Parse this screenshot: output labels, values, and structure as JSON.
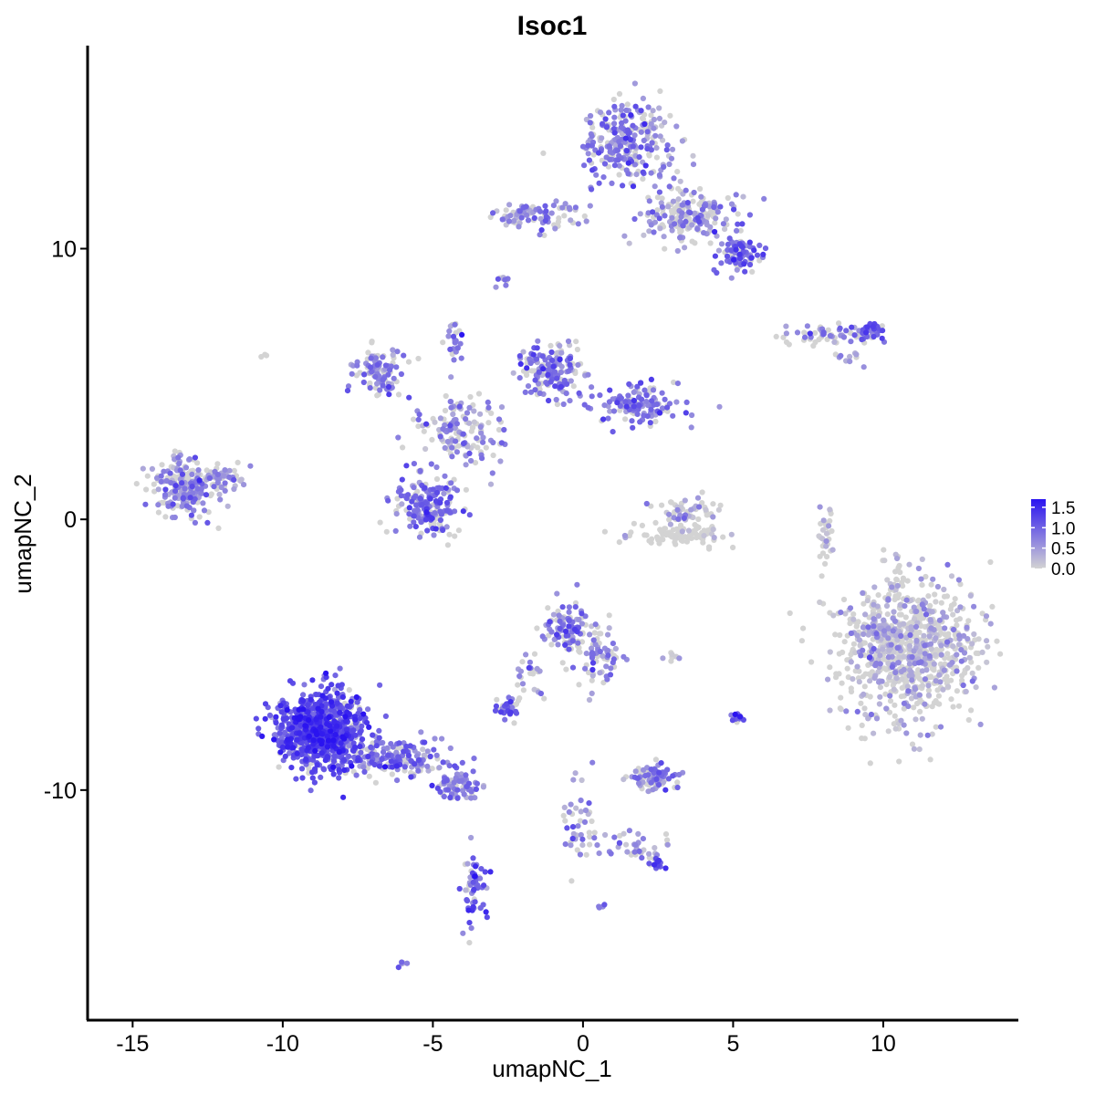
{
  "chart_data": {
    "type": "scatter",
    "title": "Isoc1",
    "xlabel": "umapNC_1",
    "ylabel": "umapNC_2",
    "xlim": [
      -16.5,
      14.5
    ],
    "ylim": [
      -18.5,
      17.5
    ],
    "xticks": [
      -15,
      -10,
      -5,
      0,
      5,
      10
    ],
    "yticks": [
      -10,
      0,
      10
    ],
    "grid": false,
    "legend": {
      "position": "right",
      "type": "colorbar",
      "labels": [
        "1.5",
        "1.0",
        "0.5",
        "0.0"
      ],
      "values": [
        1.5,
        1.0,
        0.5,
        0.0
      ],
      "max": 1.7,
      "low_color": "#d3d3d3",
      "high_color": "#2a13f0"
    },
    "clusters": [
      {
        "center": [
          1.5,
          14.0
        ],
        "spread": [
          1.3,
          1.3
        ],
        "n": 260,
        "expr": 0.75
      },
      {
        "center": [
          3.5,
          11.2
        ],
        "spread": [
          1.4,
          0.8
        ],
        "n": 200,
        "expr": 0.55
      },
      {
        "center": [
          5.2,
          9.8
        ],
        "spread": [
          0.6,
          0.6
        ],
        "n": 90,
        "expr": 0.9
      },
      {
        "center": [
          -1.5,
          11.2
        ],
        "spread": [
          1.4,
          0.5
        ],
        "n": 90,
        "expr": 0.65
      },
      {
        "center": [
          -2.7,
          8.8
        ],
        "spread": [
          0.2,
          0.2
        ],
        "n": 10,
        "expr": 0.7
      },
      {
        "center": [
          -1.0,
          5.5
        ],
        "spread": [
          0.9,
          0.9
        ],
        "n": 160,
        "expr": 0.85
      },
      {
        "center": [
          1.8,
          4.2
        ],
        "spread": [
          1.2,
          0.6
        ],
        "n": 130,
        "expr": 0.8
      },
      {
        "center": [
          -6.8,
          5.5
        ],
        "spread": [
          0.8,
          0.7
        ],
        "n": 110,
        "expr": 0.75
      },
      {
        "center": [
          -4.0,
          3.2
        ],
        "spread": [
          1.2,
          1.2
        ],
        "n": 140,
        "expr": 0.6
      },
      {
        "center": [
          -5.2,
          0.5
        ],
        "spread": [
          1.0,
          0.9
        ],
        "n": 200,
        "expr": 0.9
      },
      {
        "center": [
          -4.3,
          6.7
        ],
        "spread": [
          0.3,
          0.8
        ],
        "n": 25,
        "expr": 0.7
      },
      {
        "center": [
          -13.2,
          1.2
        ],
        "spread": [
          0.9,
          0.9
        ],
        "n": 230,
        "expr": 0.6
      },
      {
        "center": [
          -12.0,
          1.6
        ],
        "spread": [
          0.6,
          0.5
        ],
        "n": 40,
        "expr": 0.5
      },
      {
        "center": [
          3.5,
          0.3
        ],
        "spread": [
          0.8,
          0.5
        ],
        "n": 60,
        "expr": 0.25
      },
      {
        "center": [
          3.1,
          -0.6
        ],
        "spread": [
          1.3,
          0.35
        ],
        "n": 90,
        "expr": 0.05
      },
      {
        "center": [
          8.0,
          6.8
        ],
        "spread": [
          1.2,
          0.3
        ],
        "n": 60,
        "expr": 0.65
      },
      {
        "center": [
          9.6,
          6.9
        ],
        "spread": [
          0.4,
          0.25
        ],
        "n": 35,
        "expr": 1.05
      },
      {
        "center": [
          8.1,
          -0.5
        ],
        "spread": [
          0.2,
          0.8
        ],
        "n": 30,
        "expr": 0.2
      },
      {
        "center": [
          10.8,
          -4.8
        ],
        "spread": [
          1.9,
          2.1
        ],
        "n": 900,
        "expr": 0.28
      },
      {
        "center": [
          -0.5,
          -4.0
        ],
        "spread": [
          0.7,
          0.8
        ],
        "n": 110,
        "expr": 0.75
      },
      {
        "center": [
          0.6,
          -5.0
        ],
        "spread": [
          0.6,
          1.0
        ],
        "n": 60,
        "expr": 0.7
      },
      {
        "center": [
          -2.5,
          -7.0
        ],
        "spread": [
          0.4,
          0.3
        ],
        "n": 40,
        "expr": 0.85
      },
      {
        "center": [
          -1.7,
          -5.9
        ],
        "spread": [
          0.4,
          0.9
        ],
        "n": 25,
        "expr": 0.6
      },
      {
        "center": [
          -8.7,
          -7.8
        ],
        "spread": [
          1.2,
          1.2
        ],
        "n": 900,
        "expr": 1.15
      },
      {
        "center": [
          -6.2,
          -8.8
        ],
        "spread": [
          1.3,
          0.6
        ],
        "n": 180,
        "expr": 0.85
      },
      {
        "center": [
          -4.2,
          -9.9
        ],
        "spread": [
          0.7,
          0.4
        ],
        "n": 70,
        "expr": 0.75
      },
      {
        "center": [
          -3.6,
          -13.6
        ],
        "spread": [
          0.35,
          1.1
        ],
        "n": 60,
        "expr": 1.0
      },
      {
        "center": [
          2.3,
          -9.5
        ],
        "spread": [
          0.6,
          0.4
        ],
        "n": 90,
        "expr": 0.7
      },
      {
        "center": [
          -0.1,
          -11.0
        ],
        "spread": [
          0.5,
          1.2
        ],
        "n": 40,
        "expr": 0.6
      },
      {
        "center": [
          1.5,
          -12.1
        ],
        "spread": [
          1.1,
          0.4
        ],
        "n": 40,
        "expr": 0.55
      },
      {
        "center": [
          2.5,
          -12.7
        ],
        "spread": [
          0.2,
          0.2
        ],
        "n": 15,
        "expr": 1.2
      },
      {
        "center": [
          5.1,
          -7.3
        ],
        "spread": [
          0.2,
          0.2
        ],
        "n": 15,
        "expr": 1.1
      },
      {
        "center": [
          3.0,
          -5.1
        ],
        "spread": [
          0.2,
          0.1
        ],
        "n": 8,
        "expr": 0.4
      },
      {
        "center": [
          -6.0,
          -16.4
        ],
        "spread": [
          0.15,
          0.1
        ],
        "n": 5,
        "expr": 0.7
      },
      {
        "center": [
          0.6,
          -14.3
        ],
        "spread": [
          0.1,
          0.1
        ],
        "n": 4,
        "expr": 0.8
      },
      {
        "center": [
          8.9,
          6.0
        ],
        "spread": [
          0.4,
          0.2
        ],
        "n": 10,
        "expr": 0.5
      },
      {
        "center": [
          -10.6,
          6.1
        ],
        "spread": [
          0.1,
          0.1
        ],
        "n": 3,
        "expr": 0.0
      }
    ]
  }
}
